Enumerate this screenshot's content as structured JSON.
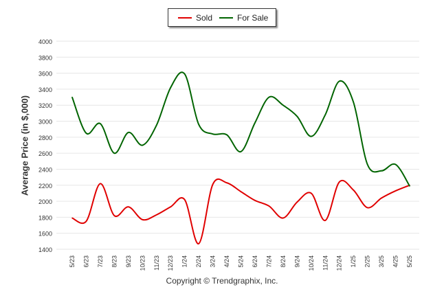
{
  "chart_data": {
    "type": "line",
    "title": "",
    "xlabel": "",
    "ylabel": "Average Price (in $,000)",
    "ylim": [
      1400,
      4000
    ],
    "yticks": [
      1400,
      1600,
      1800,
      2000,
      2200,
      2400,
      2600,
      2800,
      3000,
      3200,
      3400,
      3600,
      3800,
      4000
    ],
    "grid": true,
    "legend_position": "top-center",
    "categories": [
      "5/23",
      "6/23",
      "7/23",
      "8/23",
      "9/23",
      "10/23",
      "11/23",
      "12/23",
      "1/24",
      "2/24",
      "3/24",
      "4/24",
      "5/24",
      "6/24",
      "7/24",
      "8/24",
      "9/24",
      "10/24",
      "11/24",
      "12/24",
      "1/25",
      "2/25",
      "3/25",
      "4/25",
      "5/25"
    ],
    "series": [
      {
        "name": "Sold",
        "color": "#e00000",
        "values": [
          1790,
          1750,
          2220,
          1820,
          1930,
          1770,
          1830,
          1930,
          2020,
          1470,
          2210,
          2230,
          2120,
          2010,
          1940,
          1790,
          1990,
          2100,
          1760,
          2240,
          2140,
          1920,
          2040,
          2130,
          2200
        ]
      },
      {
        "name": "For Sale",
        "color": "#006400",
        "values": [
          3300,
          2850,
          2970,
          2600,
          2860,
          2700,
          2950,
          3420,
          3590,
          2960,
          2840,
          2830,
          2620,
          2980,
          3300,
          3200,
          3060,
          2810,
          3080,
          3500,
          3240,
          2460,
          2380,
          2460,
          2190
        ]
      }
    ]
  },
  "footer": {
    "copyright": "Copyright © Trendgraphix, Inc."
  }
}
